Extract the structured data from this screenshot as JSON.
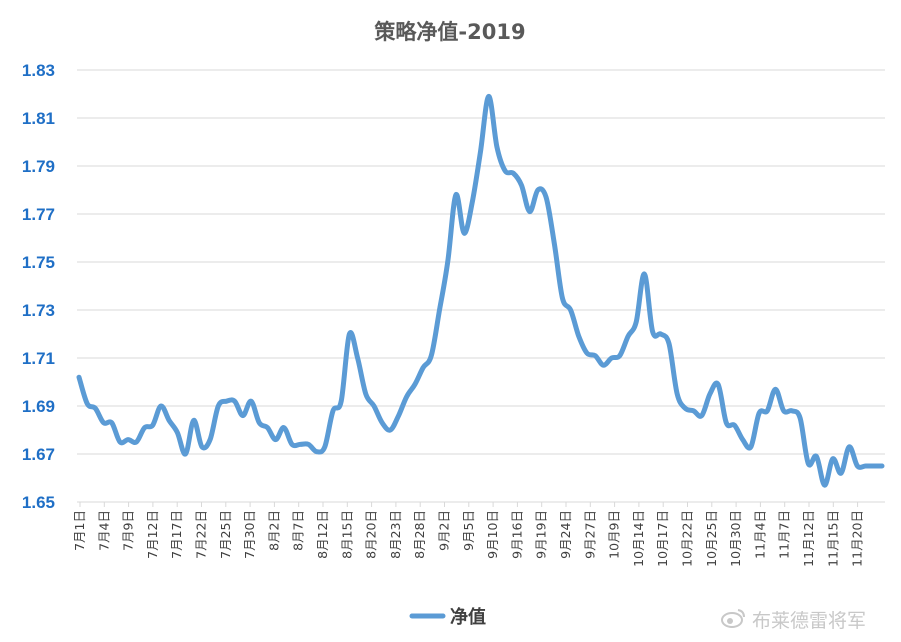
{
  "chart_data": {
    "type": "line",
    "title": "策略净值-2019",
    "xlabel": "",
    "ylabel": "",
    "ylim": [
      1.65,
      1.84
    ],
    "yticks": [
      "1.83",
      "1.81",
      "1.79",
      "1.77",
      "1.75",
      "1.73",
      "1.71",
      "1.69",
      "1.67",
      "1.65"
    ],
    "grid": true,
    "legend_position": "bottom",
    "x_labels": [
      "7月1日",
      "7月4日",
      "7月9日",
      "7月12日",
      "7月17日",
      "7月22日",
      "7月25日",
      "7月30日",
      "8月2日",
      "8月7日",
      "8月12日",
      "8月15日",
      "8月20日",
      "8月23日",
      "8月28日",
      "9月2日",
      "9月5日",
      "9月10日",
      "9月16日",
      "9月19日",
      "9月24日",
      "9月27日",
      "10月9日",
      "10月14日",
      "10月17日",
      "10月22日",
      "10月25日",
      "10月30日",
      "11月4日",
      "11月7日",
      "11月12日",
      "11月15日",
      "11月20日"
    ],
    "series": [
      {
        "name": "净值",
        "color": "#5b9bd5",
        "values": [
          1.702,
          1.691,
          1.689,
          1.683,
          1.683,
          1.675,
          1.676,
          1.675,
          1.681,
          1.682,
          1.69,
          1.684,
          1.679,
          1.67,
          1.684,
          1.673,
          1.676,
          1.69,
          1.692,
          1.692,
          1.686,
          1.692,
          1.683,
          1.681,
          1.676,
          1.681,
          1.674,
          1.674,
          1.674,
          1.671,
          1.673,
          1.688,
          1.692,
          1.72,
          1.71,
          1.695,
          1.69,
          1.683,
          1.68,
          1.686,
          1.694,
          1.699,
          1.706,
          1.711,
          1.73,
          1.75,
          1.778,
          1.762,
          1.775,
          1.796,
          1.819,
          1.798,
          1.788,
          1.787,
          1.782,
          1.771,
          1.78,
          1.777,
          1.758,
          1.735,
          1.73,
          1.719,
          1.712,
          1.711,
          1.707,
          1.71,
          1.711,
          1.719,
          1.725,
          1.745,
          1.721,
          1.72,
          1.716,
          1.695,
          1.689,
          1.688,
          1.686,
          1.695,
          1.699,
          1.683,
          1.682,
          1.676,
          1.673,
          1.687,
          1.688,
          1.697,
          1.688,
          1.688,
          1.685,
          1.666,
          1.669,
          1.657,
          1.668,
          1.662,
          1.673,
          1.665,
          1.665,
          1.665,
          1.665
        ]
      }
    ]
  },
  "legend": {
    "label": "净值"
  },
  "watermark": "布莱德雷将军"
}
